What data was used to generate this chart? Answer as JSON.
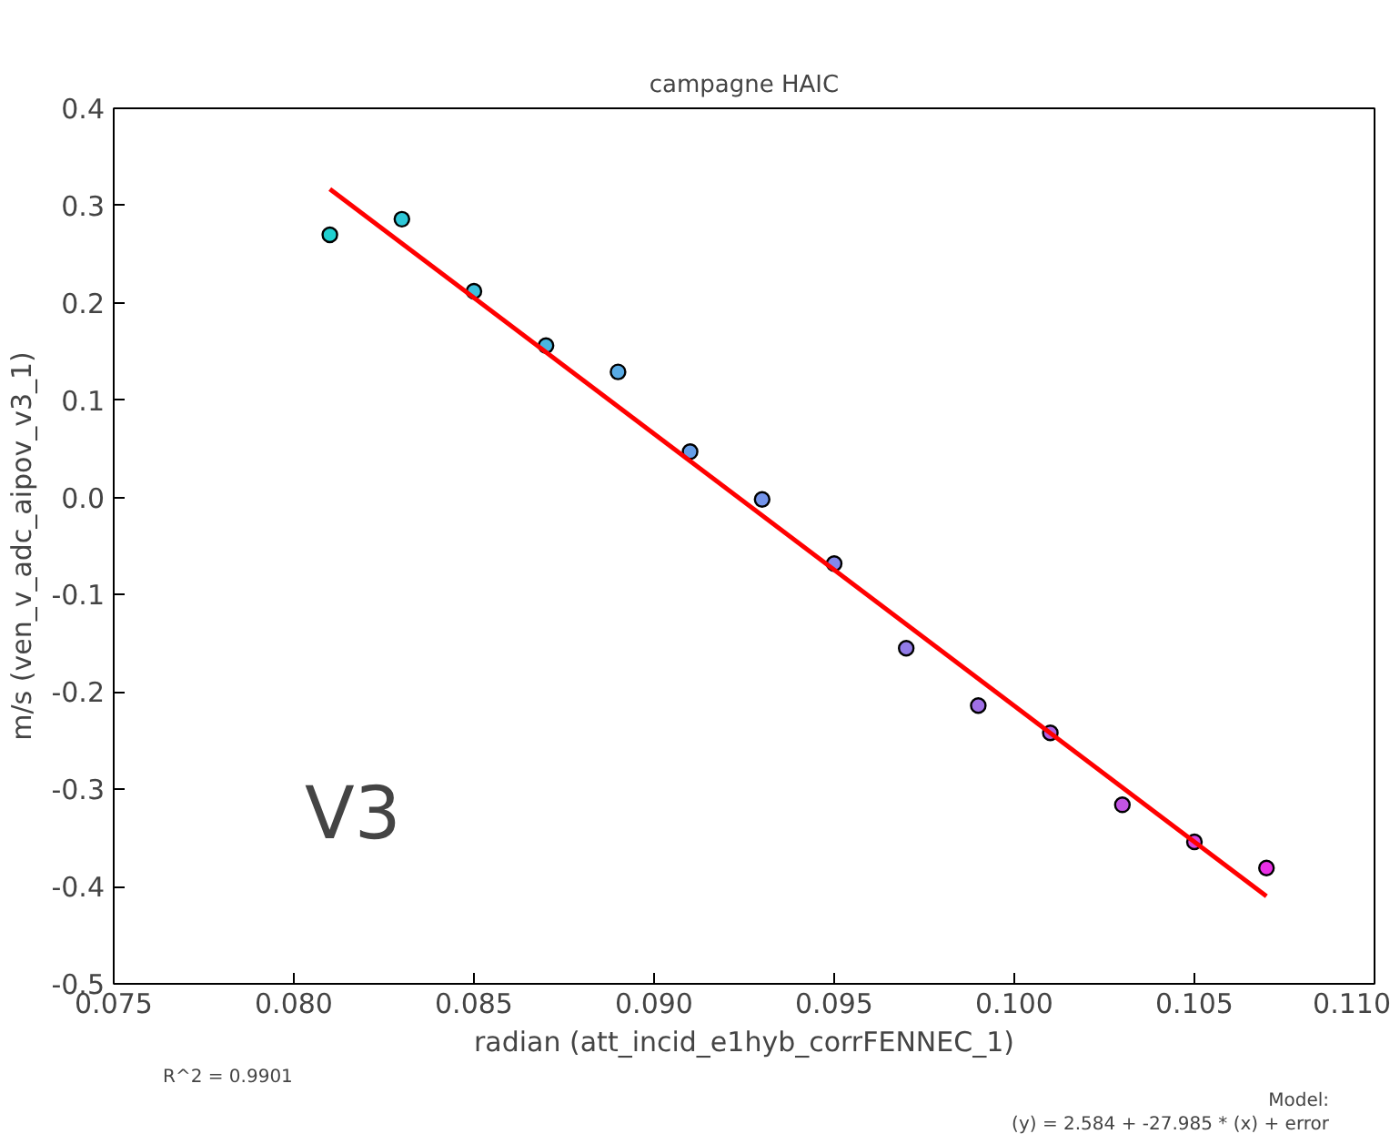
{
  "chart_data": {
    "type": "scatter",
    "title": "campagne HAIC",
    "xlabel": "radian (att_incid_e1hyb_corrFENNEC_1)",
    "ylabel": "m/s (ven_v_adc_aipov_v3_1)",
    "xlim": [
      0.075,
      0.11
    ],
    "xticks": [
      {
        "value": 0.075,
        "label": "0.075"
      },
      {
        "value": 0.08,
        "label": "0.080"
      },
      {
        "value": 0.085,
        "label": "0.085"
      },
      {
        "value": 0.09,
        "label": "0.090"
      },
      {
        "value": 0.095,
        "label": "0.095"
      },
      {
        "value": 0.1,
        "label": "0.100"
      },
      {
        "value": 0.105,
        "label": "0.105"
      },
      {
        "value": 0.11,
        "label": "0.110"
      }
    ],
    "ylim": [
      -0.5,
      0.4
    ],
    "yticks": [
      -0.5,
      -0.4,
      -0.3,
      -0.2,
      -0.1,
      {
        "value": 0,
        "label": "0.0"
      },
      0.1,
      0.2,
      0.3,
      0.4
    ],
    "grid": false,
    "marker": "circle",
    "series": [
      {
        "x": [
          0.081,
          0.083,
          0.085,
          0.087,
          0.089,
          0.091,
          0.093,
          0.095,
          0.097,
          0.099,
          0.101,
          0.103,
          0.105,
          0.107
        ],
        "values": [
          0.27,
          0.286,
          0.212,
          0.156,
          0.129,
          0.047,
          -0.002,
          -0.068,
          -0.155,
          -0.214,
          -0.242,
          -0.316,
          -0.354,
          -0.381
        ],
        "colors": [
          "#20d0d0",
          "#2ec8d8",
          "#3cc0dc",
          "#4ab6e0",
          "#58aae4",
          "#669ee8",
          "#7494ea",
          "#8488ea",
          "#927ce8",
          "#a070e6",
          "#b062e4",
          "#c254e2",
          "#d846e0",
          "#ea30e6"
        ]
      },
      {
        "type": "line",
        "marker": "none",
        "color": "#ff0000",
        "x": [
          0.081,
          0.107
        ],
        "values": [
          0.317,
          -0.41
        ]
      }
    ],
    "annotations": [
      "V3",
      "R^2 = 0.9901",
      "Model:",
      "(y) = 2.584 + -27.985 * (x) + error"
    ]
  }
}
